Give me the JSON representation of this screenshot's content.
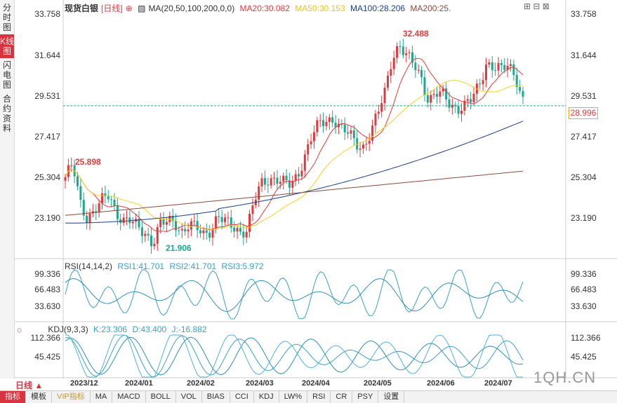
{
  "side_tabs": [
    {
      "label": "分时图",
      "active": false
    },
    {
      "label": "K线图",
      "active": true
    },
    {
      "label": "闪电图",
      "active": false
    },
    {
      "label": "合约资料",
      "active": false
    }
  ],
  "header": {
    "name": "现货白银",
    "period": "[日线]",
    "ma_label": "MA(20,50,100,200,0,0)",
    "ma20": "MA20:30.082",
    "ma50": "MA50:30.153",
    "ma100": "MA100:28.206",
    "ma200": "MA200:25."
  },
  "price_axis": [
    "33.758",
    "31.644",
    "29.531",
    "27.417",
    "25.304",
    "23.190"
  ],
  "current_price": "28.996",
  "annotations": {
    "high": "32.488",
    "low": "21.906",
    "mark": "25.898"
  },
  "rsi": {
    "label": "RSI(14,14,2)",
    "rsi1": "RSI1:41.701",
    "rsi2": "RSI2:41.701",
    "rsi3": "RSI3:5.972",
    "axis": [
      "99.336",
      "66.483",
      "33.630"
    ]
  },
  "kdj": {
    "label": "KDJ(9,3,3)",
    "k": "K:23.306",
    "d": "D:43.400",
    "j": "J:-16.882",
    "axis": [
      "112.366",
      "45.425"
    ]
  },
  "x_axis": [
    "2023/12",
    "2024/01",
    "2024/02",
    "2024/03",
    "2024/04",
    "2024/05",
    "2024/06",
    "2024/07"
  ],
  "period_btn": "日线",
  "bottom_tabs": [
    "指标",
    "模板",
    "VIP指标",
    "MA",
    "MACD",
    "BOLL",
    "VOL",
    "BIAS",
    "CCI",
    "KDJ",
    "LW%",
    "RSI",
    "CR",
    "PSY",
    "设置"
  ],
  "watermark": "1QH.CN",
  "colors": {
    "up": "#e4393c",
    "down": "#1fa78f",
    "ma20": "#e4393c",
    "ma50": "#f5d31f",
    "ma100": "#1a3f8f",
    "ma200": "#8b4a3c"
  },
  "chart_data": {
    "type": "candlestick",
    "title": "现货白银 [日线]",
    "ylim": [
      21.2,
      34.2
    ],
    "x": [
      "2023/12",
      "2024/01",
      "2024/02",
      "2024/03",
      "2024/04",
      "2024/05",
      "2024/06",
      "2024/07"
    ],
    "close_path": [
      25.3,
      25.9,
      24.0,
      23.2,
      23.6,
      24.0,
      24.3,
      23.5,
      23.1,
      23.0,
      22.6,
      22.4,
      21.9,
      22.8,
      22.9,
      23.0,
      22.5,
      22.8,
      22.6,
      22.3,
      22.6,
      23.3,
      22.9,
      22.7,
      22.5,
      22.6,
      24.0,
      24.9,
      25.2,
      25.3,
      25.0,
      24.8,
      25.4,
      26.5,
      27.5,
      28.0,
      28.2,
      28.4,
      27.8,
      27.5,
      27.0,
      26.9,
      27.6,
      28.5,
      29.7,
      31.6,
      32.2,
      31.5,
      31.1,
      30.5,
      29.3,
      29.6,
      29.5,
      29.1,
      28.9,
      29.0,
      29.3,
      30.1,
      31.3,
      31.0,
      30.8,
      31.1,
      30.6,
      29.3
    ]
  }
}
